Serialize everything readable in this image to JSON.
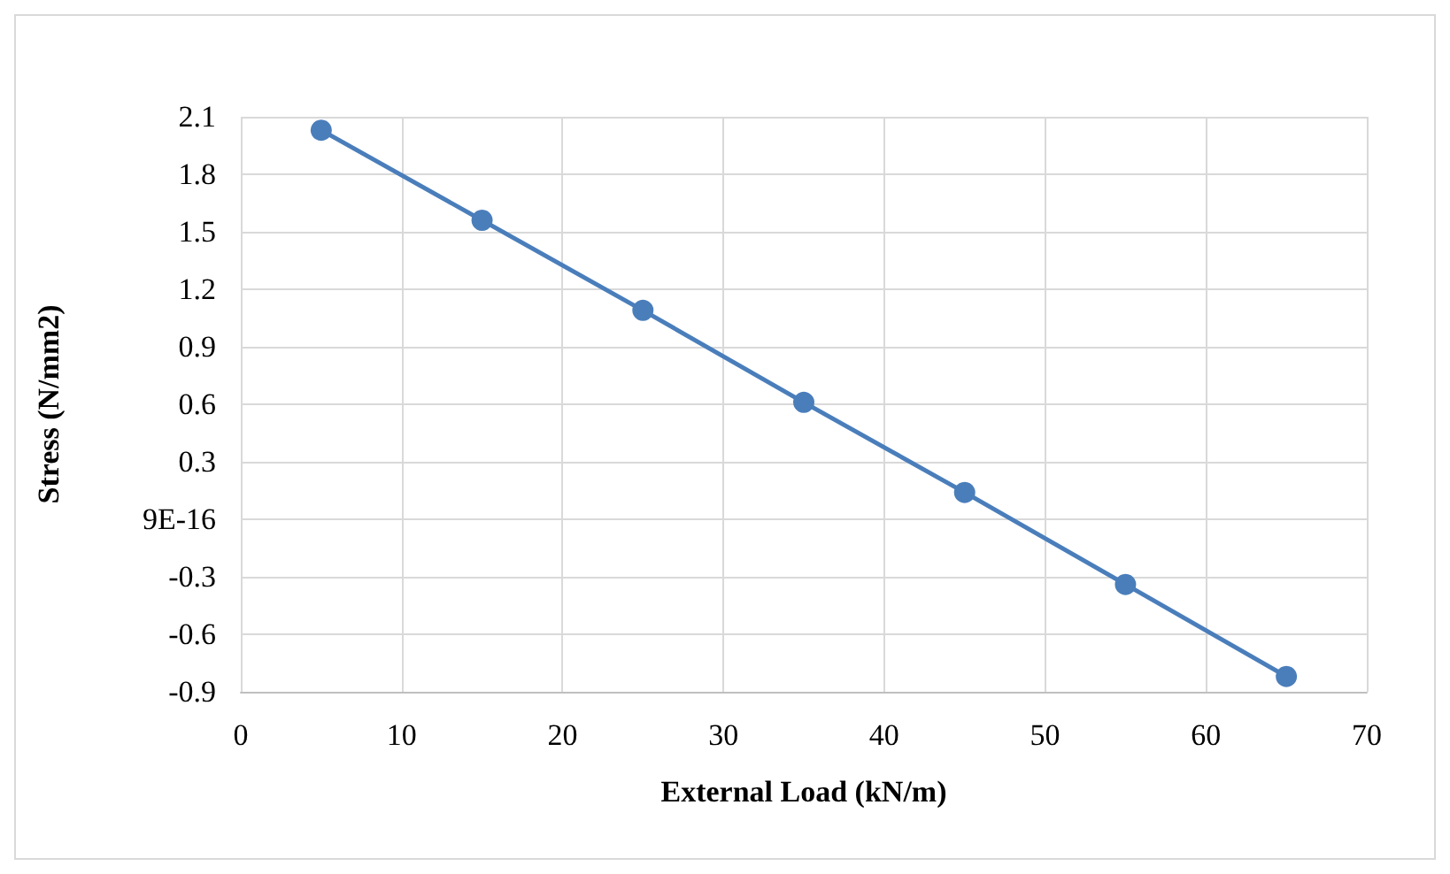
{
  "chart_data": {
    "type": "line",
    "xlabel": "External Load (kN/m)",
    "ylabel": "Stress (N/mm2)",
    "x": [
      5,
      15,
      25,
      35,
      45,
      55,
      65
    ],
    "series": [
      {
        "color": "#4a7ebb",
        "values": [
          2.03,
          1.56,
          1.09,
          0.61,
          0.14,
          -0.34,
          -0.82
        ]
      }
    ],
    "xlim": [
      0,
      70
    ],
    "xticks": [
      0,
      10,
      20,
      30,
      40,
      50,
      60,
      70
    ],
    "ylim": [
      -0.9,
      2.1
    ],
    "yticks": [
      -0.9,
      -0.6,
      -0.3,
      {
        "value": 9e-16,
        "label": "9E-16"
      },
      0.3,
      0.6,
      0.9,
      1.2,
      1.5,
      1.8,
      2.1
    ],
    "grid": true,
    "marker": "circle",
    "line_style": "solid"
  }
}
